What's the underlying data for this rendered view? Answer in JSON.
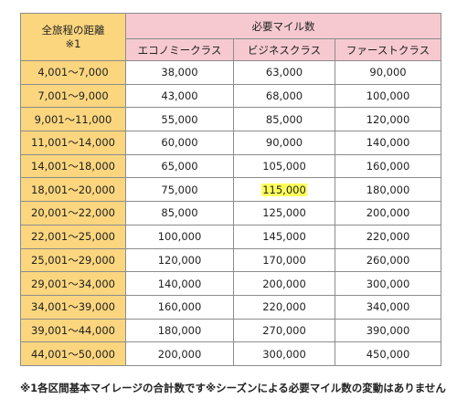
{
  "header": {
    "distance": "全旅程の距離",
    "distance_note": "※1",
    "miles": "必要マイル数",
    "columns": [
      "エコノミークラス",
      "ビジネスクラス",
      "ファーストクラス"
    ]
  },
  "table": {
    "rows": [
      [
        "4,001〜7,000",
        "38,000",
        "63,000",
        "90,000"
      ],
      [
        "7,001〜9,000",
        "43,000",
        "68,000",
        "100,000"
      ],
      [
        "9,001〜11,000",
        "55,000",
        "85,000",
        "120,000"
      ],
      [
        "11,001〜14,000",
        "60,000",
        "90,000",
        "140,000"
      ],
      [
        "14,001〜18,000",
        "65,000",
        "105,000",
        "160,000"
      ],
      [
        "18,001〜20,000",
        "75,000",
        "115,000",
        "180,000"
      ],
      [
        "20,001〜22,000",
        "85,000",
        "125,000",
        "200,000"
      ],
      [
        "22,001〜25,000",
        "100,000",
        "145,000",
        "220,000"
      ],
      [
        "25,001〜29,000",
        "120,000",
        "170,000",
        "260,000"
      ],
      [
        "29,001〜34,000",
        "140,000",
        "200,000",
        "300,000"
      ],
      [
        "34,001〜39,000",
        "160,000",
        "220,000",
        "340,000"
      ],
      [
        "39,001〜44,000",
        "180,000",
        "270,000",
        "390,000"
      ],
      [
        "44,001〜50,000",
        "200,000",
        "300,000",
        "450,000"
      ]
    ]
  },
  "footnote": "※1各区間基本マイレージの合計数です※シーズンによる必要マイル数の変動はありません"
}
